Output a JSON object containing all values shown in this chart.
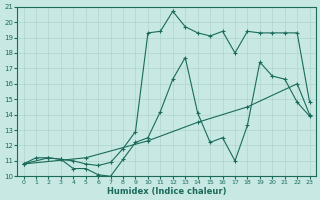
{
  "title": "",
  "xlabel": "Humidex (Indice chaleur)",
  "xlim": [
    -0.5,
    23.5
  ],
  "ylim": [
    10,
    21
  ],
  "yticks": [
    10,
    11,
    12,
    13,
    14,
    15,
    16,
    17,
    18,
    19,
    20,
    21
  ],
  "xticks": [
    0,
    1,
    2,
    3,
    4,
    5,
    6,
    7,
    8,
    9,
    10,
    11,
    12,
    13,
    14,
    15,
    16,
    17,
    18,
    19,
    20,
    21,
    22,
    23
  ],
  "bg_color": "#c8e8e4",
  "grid_color": "#b0d4cc",
  "line_color": "#1a6b5a",
  "line1_x": [
    0,
    1,
    2,
    3,
    4,
    5,
    6,
    7,
    8,
    9,
    10,
    11,
    12,
    13,
    14,
    15,
    16,
    17,
    18,
    19,
    20,
    21,
    22,
    23
  ],
  "line1_y": [
    10.8,
    11.2,
    11.2,
    11.1,
    10.5,
    10.5,
    10.1,
    10.0,
    11.1,
    12.2,
    12.5,
    14.2,
    16.3,
    17.7,
    14.1,
    12.2,
    12.5,
    11.0,
    13.3,
    17.4,
    16.5,
    16.3,
    14.8,
    13.9
  ],
  "line2_x": [
    0,
    2,
    3,
    4,
    5,
    6,
    7,
    8,
    9,
    10,
    11,
    12,
    13,
    14,
    15,
    16,
    17,
    18,
    19,
    20,
    21,
    22,
    23
  ],
  "line2_y": [
    10.8,
    11.2,
    11.1,
    11.0,
    10.8,
    10.7,
    10.9,
    11.8,
    12.9,
    19.3,
    19.4,
    20.7,
    19.7,
    19.3,
    19.1,
    19.4,
    18.0,
    19.4,
    19.3,
    19.3,
    19.3,
    19.3,
    14.8
  ],
  "line3_x": [
    0,
    5,
    10,
    14,
    18,
    22,
    23
  ],
  "line3_y": [
    10.8,
    11.2,
    12.3,
    13.5,
    14.5,
    16.0,
    14.0
  ],
  "markersize": 2.0,
  "linewidth": 0.8
}
